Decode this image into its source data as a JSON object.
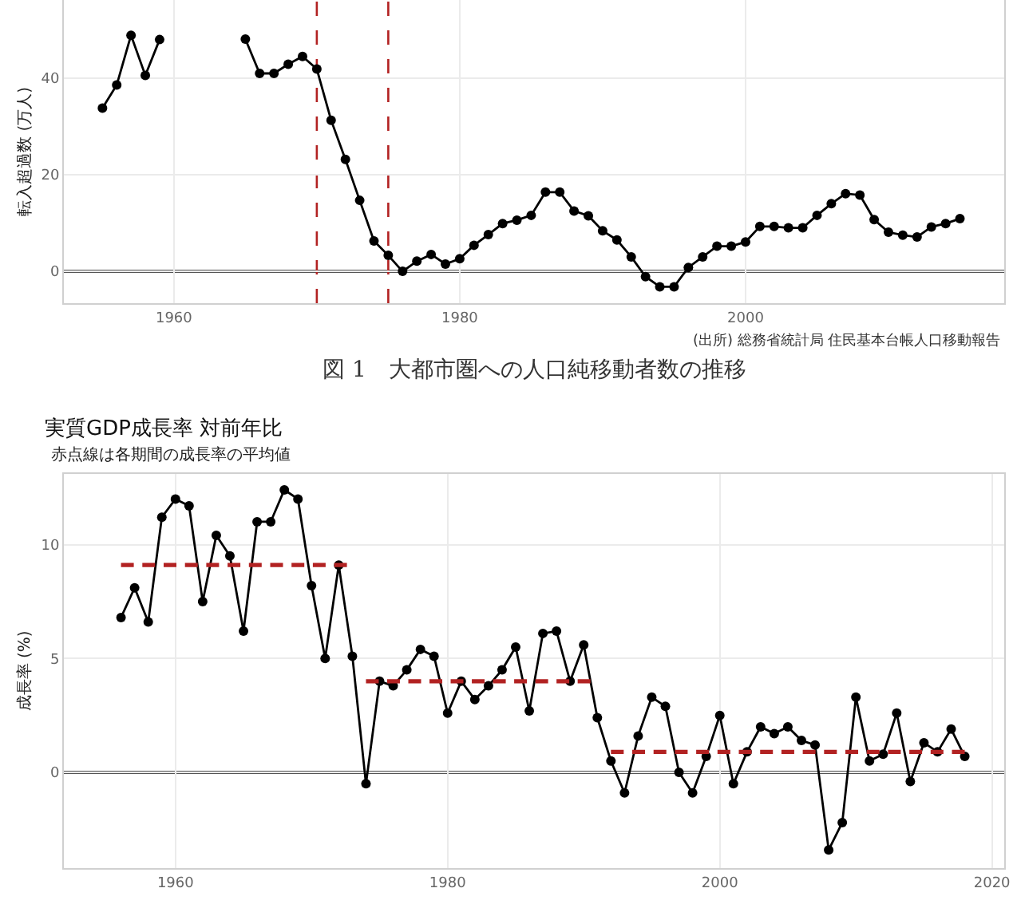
{
  "chart_data": [
    {
      "type": "line",
      "ylabel": "転入超過数 (万人)",
      "annotations": [
        "(出所) 総務省統計局 住民基本台帳人口移動報告",
        "図 1　大都市圏への人口純移動者数の推移"
      ],
      "x": [
        1955,
        1956,
        1957,
        1958,
        1959,
        1960,
        1961,
        1962,
        1963,
        1964,
        1965,
        1966,
        1967,
        1968,
        1969,
        1970,
        1971,
        1972,
        1973,
        1974,
        1975,
        1976,
        1977,
        1978,
        1979,
        1980,
        1981,
        1982,
        1983,
        1984,
        1985,
        1986,
        1987,
        1988,
        1989,
        1990,
        1991,
        1992,
        1993,
        1994,
        1995,
        1996,
        1997,
        1998,
        1999,
        2000,
        2001,
        2002,
        2003,
        2004,
        2005,
        2006,
        2007,
        2008,
        2009,
        2010,
        2011,
        2012,
        2013,
        2014,
        2015
      ],
      "series": [
        {
          "color": "#000000",
          "values": [
            33.8,
            38.6,
            48.9,
            40.6,
            48.0,
            null,
            null,
            null,
            null,
            null,
            48.1,
            41.0,
            41.0,
            42.9,
            44.5,
            41.9,
            31.3,
            23.2,
            14.7,
            6.3,
            3.3,
            0,
            2.1,
            3.5,
            1.5,
            2.6,
            5.4,
            7.6,
            9.9,
            10.6,
            11.6,
            16.4,
            16.4,
            12.5,
            11.5,
            8.4,
            6.5,
            3.0,
            -1.1,
            -3.2,
            -3.2,
            0.8,
            3.0,
            5.2,
            5.2,
            6.1,
            9.3,
            9.3,
            9.0,
            9.0,
            11.6,
            14.0,
            16.1,
            15.8,
            10.7,
            8.1,
            7.5,
            7.1,
            9.2,
            9.9,
            10.9
          ]
        }
      ],
      "xlim": [
        1952.3,
        2018.1
      ],
      "ylim": [
        -6.6,
        56.2
      ],
      "xticks": [
        1960,
        1980,
        2000
      ],
      "yticks": [
        0,
        20,
        40
      ],
      "ref_lines": [
        {
          "axis": "y",
          "value": 0,
          "color": "#555555",
          "line_style": "solid"
        },
        {
          "axis": "x",
          "value": 1970,
          "color": "#b22222",
          "line_style": "dashed"
        },
        {
          "axis": "x",
          "value": 1975,
          "color": "#b22222",
          "line_style": "dashed"
        }
      ],
      "grid": true,
      "marker": "circle",
      "line_style": "solid"
    },
    {
      "type": "line",
      "title": "実質GDP成長率 対前年比",
      "subtitle": "赤点線は各期間の成長率の平均値",
      "ylabel": "成長率 (%)",
      "x": [
        1956,
        1957,
        1958,
        1959,
        1960,
        1961,
        1962,
        1963,
        1964,
        1965,
        1966,
        1967,
        1968,
        1969,
        1970,
        1971,
        1972,
        1973,
        1974,
        1975,
        1976,
        1977,
        1978,
        1979,
        1980,
        1981,
        1982,
        1983,
        1984,
        1985,
        1986,
        1987,
        1988,
        1989,
        1990,
        1991,
        1992,
        1993,
        1994,
        1995,
        1996,
        1997,
        1998,
        1999,
        2000,
        2001,
        2002,
        2003,
        2004,
        2005,
        2006,
        2007,
        2008,
        2009,
        2010,
        2011,
        2012,
        2013,
        2014,
        2015,
        2016,
        2017,
        2018
      ],
      "series": [
        {
          "color": "#000000",
          "marker": "circle",
          "line_style": "solid",
          "values": [
            6.8,
            8.1,
            6.6,
            11.2,
            12.0,
            11.7,
            7.5,
            10.4,
            9.5,
            6.2,
            11.0,
            11.0,
            12.4,
            12.0,
            8.2,
            5.0,
            9.1,
            5.1,
            -0.5,
            4.0,
            3.8,
            4.5,
            5.4,
            5.1,
            2.6,
            4.0,
            3.2,
            3.8,
            4.5,
            5.5,
            2.7,
            6.1,
            6.2,
            4.0,
            5.6,
            2.4,
            0.5,
            -0.9,
            1.6,
            3.3,
            2.9,
            0.0,
            -0.9,
            0.7,
            2.5,
            -0.5,
            0.9,
            2.0,
            1.7,
            2.0,
            1.4,
            1.2,
            -3.4,
            -2.2,
            3.3,
            0.5,
            0.8,
            2.6,
            -0.4,
            1.3,
            0.9,
            1.9,
            0.7
          ]
        },
        {
          "type": "line",
          "color": "#b22222",
          "marker": "none",
          "line_style": "dashed",
          "x": [
            1956,
            1972.6
          ],
          "values": [
            9.1,
            9.1
          ]
        },
        {
          "type": "line",
          "color": "#b22222",
          "marker": "none",
          "line_style": "dashed",
          "x": [
            1974,
            1990.5
          ],
          "values": [
            4.0,
            4.0
          ]
        },
        {
          "type": "line",
          "color": "#b22222",
          "marker": "none",
          "line_style": "dashed",
          "x": [
            1992,
            2018
          ],
          "values": [
            0.9,
            0.9
          ]
        }
      ],
      "xlim": [
        1951.8,
        2020.9
      ],
      "ylim": [
        -4.2,
        13.1
      ],
      "xticks": [
        1960,
        1980,
        2000,
        2020
      ],
      "yticks": [
        0,
        5,
        10
      ],
      "ref_lines": [
        {
          "axis": "y",
          "value": 0,
          "color": "#555555",
          "line_style": "solid"
        }
      ],
      "grid": true
    }
  ]
}
